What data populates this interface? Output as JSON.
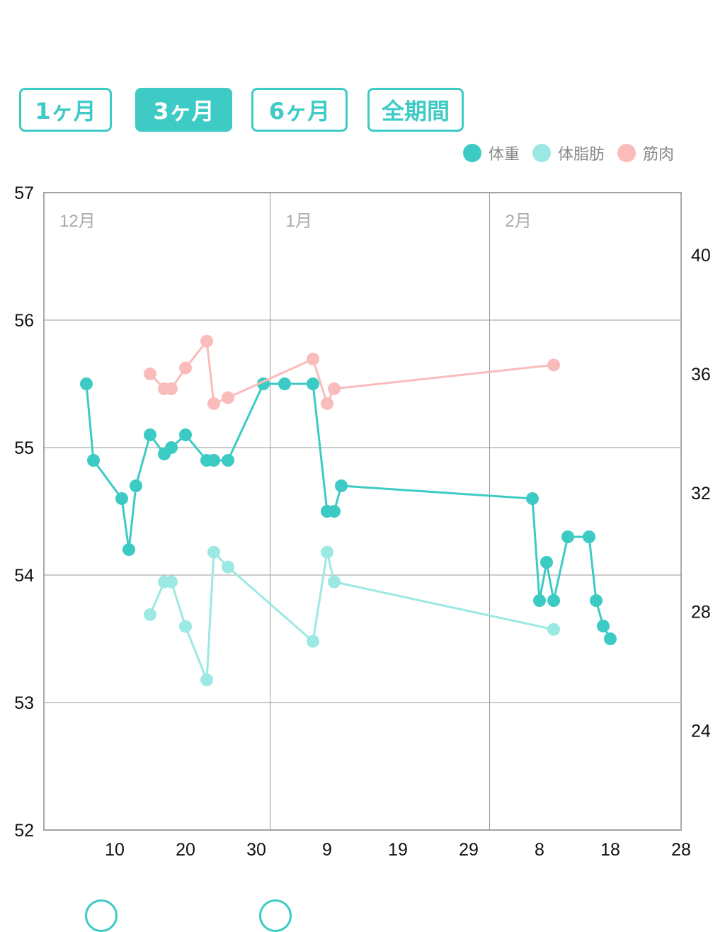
{
  "range_buttons": [
    {
      "label": "1ヶ月",
      "active": false
    },
    {
      "label": "3ヶ月",
      "active": true
    },
    {
      "label": "6ヶ月",
      "active": false
    },
    {
      "label": "全期間",
      "active": false
    }
  ],
  "colors": {
    "weight": "#3ccbc4",
    "body_fat": "#9ce8e3",
    "muscle": "#f9bcbb",
    "accent": "#3ecbc5"
  },
  "chart_data": {
    "type": "line",
    "legend": [
      {
        "name": "体重"
      },
      {
        "name": "体脂肪"
      },
      {
        "name": "筋肉"
      }
    ],
    "legend_position": "top-right",
    "x_unit": "day index (Dec 1 = 1, Jan 1 = 32, Feb 1 = 63)",
    "xlim": [
      0,
      90
    ],
    "x_ticks": [
      {
        "x": 10,
        "label": "10"
      },
      {
        "x": 20,
        "label": "20"
      },
      {
        "x": 30,
        "label": "30"
      },
      {
        "x": 40,
        "label": "9"
      },
      {
        "x": 50,
        "label": "19"
      },
      {
        "x": 60,
        "label": "29"
      },
      {
        "x": 70,
        "label": "8"
      },
      {
        "x": 80,
        "label": "18"
      },
      {
        "x": 90,
        "label": "28"
      }
    ],
    "month_labels": [
      {
        "x": 0,
        "label": "12月"
      },
      {
        "x": 32,
        "label": "1月"
      },
      {
        "x": 63,
        "label": "2月"
      }
    ],
    "y_left": {
      "lim": [
        52,
        57
      ],
      "ticks": [
        "57",
        "56",
        "55",
        "54",
        "53",
        "52"
      ]
    },
    "y_right": {
      "lim": [
        20.65,
        42.1
      ],
      "ticks": [
        "40",
        "36",
        "32",
        "28",
        "24"
      ]
    },
    "grid": true,
    "series": [
      {
        "name": "体重",
        "axis": "left",
        "points": [
          [
            6,
            55.5
          ],
          [
            7,
            54.9
          ],
          [
            11,
            54.6
          ],
          [
            12,
            54.2
          ],
          [
            13,
            54.7
          ],
          [
            15,
            55.1
          ],
          [
            17,
            54.95
          ],
          [
            18,
            55.0
          ],
          [
            20,
            55.1
          ],
          [
            23,
            54.9
          ],
          [
            24,
            54.9
          ],
          [
            26,
            54.9
          ],
          [
            31,
            55.5
          ],
          [
            34,
            55.5
          ],
          [
            38,
            55.5
          ],
          [
            40,
            54.5
          ],
          [
            41,
            54.5
          ],
          [
            42,
            54.7
          ],
          [
            69,
            54.6
          ],
          [
            70,
            53.8
          ],
          [
            71,
            54.1
          ],
          [
            72,
            53.8
          ],
          [
            74,
            54.3
          ],
          [
            77,
            54.3
          ],
          [
            78,
            53.8
          ],
          [
            79,
            53.6
          ],
          [
            80,
            53.5
          ]
        ]
      },
      {
        "name": "体脂肪",
        "axis": "right",
        "points": [
          [
            15,
            27.9
          ],
          [
            17,
            29.0
          ],
          [
            18,
            29.0
          ],
          [
            20,
            27.5
          ],
          [
            23,
            25.7
          ],
          [
            24,
            30.0
          ],
          [
            26,
            29.5
          ],
          [
            38,
            27.0
          ],
          [
            40,
            30.0
          ],
          [
            41,
            29.0
          ],
          [
            72,
            27.4
          ]
        ]
      },
      {
        "name": "筋肉",
        "axis": "right",
        "points": [
          [
            15,
            36.0
          ],
          [
            17,
            35.5
          ],
          [
            18,
            35.5
          ],
          [
            20,
            36.2
          ],
          [
            23,
            37.1
          ],
          [
            24,
            35.0
          ],
          [
            26,
            35.2
          ],
          [
            38,
            36.5
          ],
          [
            40,
            35.0
          ],
          [
            41,
            35.5
          ],
          [
            72,
            36.3
          ]
        ]
      }
    ]
  }
}
